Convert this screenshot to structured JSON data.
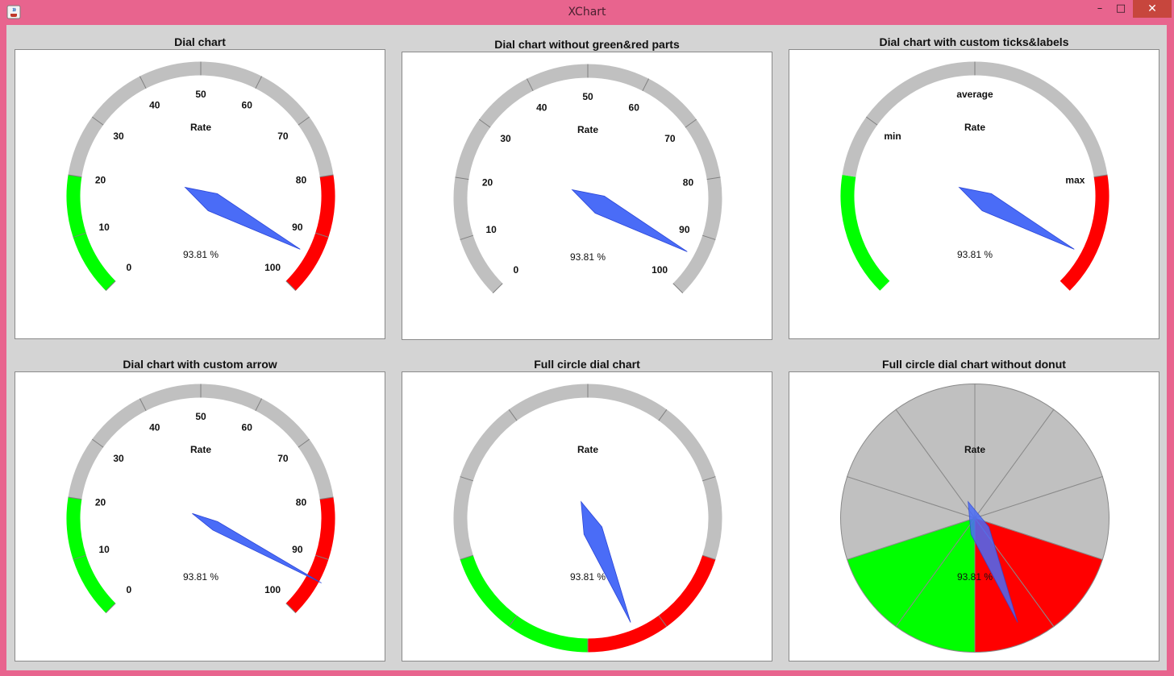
{
  "window": {
    "title": "XChart",
    "controls": {
      "minimize": "–",
      "maximize": "□",
      "close": "✕"
    }
  },
  "colors": {
    "titlebar": "#e8648e",
    "background": "#d4d4d4",
    "gray": "#c0c0c0",
    "green": "#00ff00",
    "red": "#ff0000",
    "arrow": "#4a6cf7",
    "arrow_stroke": "#2b46d8"
  },
  "chart_data": [
    {
      "type": "dial",
      "title": "Dial chart",
      "label": "Rate",
      "value": 0.9381,
      "value_text": "93.81 %",
      "variant": "arc",
      "colored_ranges": true,
      "arrow": "default",
      "ticks": [
        0,
        10,
        20,
        30,
        40,
        50,
        60,
        70,
        80,
        90,
        100
      ],
      "tick_labels": [
        "0",
        "10",
        "20",
        "30",
        "40",
        "50",
        "60",
        "70",
        "80",
        "90",
        "100"
      ]
    },
    {
      "type": "dial",
      "title": "Dial chart without green&red parts",
      "label": "Rate",
      "value": 0.9381,
      "value_text": "93.81 %",
      "variant": "arc",
      "colored_ranges": false,
      "arrow": "default",
      "ticks": [
        0,
        10,
        20,
        30,
        40,
        50,
        60,
        70,
        80,
        90,
        100
      ],
      "tick_labels": [
        "0",
        "10",
        "20",
        "30",
        "40",
        "50",
        "60",
        "70",
        "80",
        "90",
        "100"
      ]
    },
    {
      "type": "dial",
      "title": "Dial chart with custom ticks&labels",
      "label": "Rate",
      "value": 0.9381,
      "value_text": "93.81 %",
      "variant": "arc",
      "colored_ranges": true,
      "arrow": "default",
      "ticks": [
        30,
        50,
        80
      ],
      "tick_labels": [
        "min",
        "average",
        "max"
      ]
    },
    {
      "type": "dial",
      "title": "Dial chart with custom arrow",
      "label": "Rate",
      "value": 0.9381,
      "value_text": "93.81 %",
      "variant": "arc",
      "colored_ranges": true,
      "arrow": "long",
      "ticks": [
        0,
        10,
        20,
        30,
        40,
        50,
        60,
        70,
        80,
        90,
        100
      ],
      "tick_labels": [
        "0",
        "10",
        "20",
        "30",
        "40",
        "50",
        "60",
        "70",
        "80",
        "90",
        "100"
      ]
    },
    {
      "type": "dial",
      "title": "Full circle dial chart",
      "label": "Rate",
      "value": 0.9381,
      "value_text": "93.81 %",
      "variant": "full",
      "colored_ranges": true,
      "arrow": "default",
      "ticks": [
        0,
        10,
        20,
        30,
        40,
        50,
        60,
        70,
        80,
        90,
        100
      ],
      "tick_labels": []
    },
    {
      "type": "dial",
      "title": "Full circle dial chart without donut",
      "label": "Rate",
      "value": 0.9381,
      "value_text": "93.81 %",
      "variant": "pie",
      "colored_ranges": true,
      "arrow": "default",
      "ticks": [
        0,
        10,
        20,
        30,
        40,
        50,
        60,
        70,
        80,
        90,
        100
      ],
      "tick_labels": []
    }
  ]
}
